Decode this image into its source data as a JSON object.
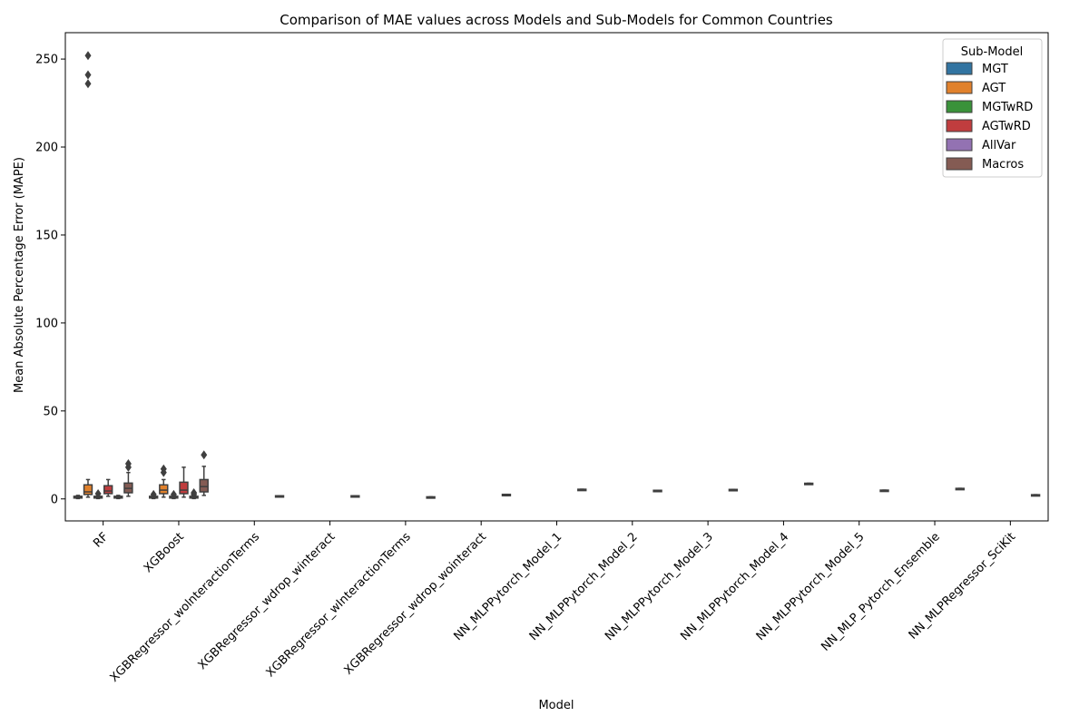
{
  "chart_data": {
    "type": "boxplot",
    "title": "Comparison of MAE values across Models and Sub-Models for Common Countries",
    "xlabel": "Model",
    "ylabel": "Mean Absolute Percentage Error (MAPE)",
    "ylim": [
      -12.5,
      265
    ],
    "yticks": [
      0,
      50,
      100,
      150,
      200,
      250
    ],
    "legend": {
      "title": "Sub-Model",
      "placement": "top-right",
      "entries": [
        "MGT",
        "AGT",
        "MGTwRD",
        "AGTwRD",
        "AllVar",
        "Macros"
      ]
    },
    "colors": {
      "MGT": "#3274a1",
      "AGT": "#e1812c",
      "MGTwRD": "#3a923a",
      "AGTwRD": "#c03d3e",
      "AllVar": "#9372b2",
      "Macros": "#845b53",
      "line": "#3f3f3f"
    },
    "categories": [
      "RF",
      "XGBoost",
      "XGBRegressor_wolnteractionTerms",
      "XGBRegressor_wdrop_winteract",
      "XGBRegressor_wInteractionTerms",
      "XGBRegressor_wdrop_wointeract",
      "NN_MLPPytorch_Model_1",
      "NN_MLPPytorch_Model_2",
      "NN_MLPPytorch_Model_3",
      "NN_MLPPytorch_Model_4",
      "NN_MLPPytorch_Model_5",
      "NN_MLP_Pytorch_Ensemble",
      "NN_MLPRegressor_SciKit"
    ],
    "boxes": [
      {
        "category": 0,
        "sub": "MGT",
        "q1": 0.5,
        "median": 1.0,
        "q3": 1.5,
        "whislo": 0.2,
        "whishi": 2.0,
        "fliers": []
      },
      {
        "category": 0,
        "sub": "AGT",
        "q1": 2.5,
        "median": 4.0,
        "q3": 8.0,
        "whislo": 1.0,
        "whishi": 11.0,
        "fliers": [
          236,
          241,
          252
        ]
      },
      {
        "category": 0,
        "sub": "MGTwRD",
        "q1": 0.5,
        "median": 1.0,
        "q3": 1.5,
        "whislo": 0.2,
        "whishi": 2.0,
        "fliers": [
          3.0
        ]
      },
      {
        "category": 0,
        "sub": "AGTwRD",
        "q1": 3.0,
        "median": 4.5,
        "q3": 7.5,
        "whislo": 1.5,
        "whishi": 11.0,
        "fliers": []
      },
      {
        "category": 0,
        "sub": "AllVar",
        "q1": 0.5,
        "median": 1.0,
        "q3": 1.5,
        "whislo": 0.2,
        "whishi": 2.0,
        "fliers": []
      },
      {
        "category": 0,
        "sub": "Macros",
        "q1": 3.5,
        "median": 6.0,
        "q3": 9.0,
        "whislo": 1.5,
        "whishi": 15.0,
        "fliers": [
          18,
          20
        ]
      },
      {
        "category": 1,
        "sub": "MGT",
        "q1": 0.5,
        "median": 1.0,
        "q3": 1.5,
        "whislo": 0.2,
        "whishi": 2.0,
        "fliers": [
          2.5
        ]
      },
      {
        "category": 1,
        "sub": "AGT",
        "q1": 3.0,
        "median": 5.0,
        "q3": 8.0,
        "whislo": 1.0,
        "whishi": 11.0,
        "fliers": [
          15,
          17
        ]
      },
      {
        "category": 1,
        "sub": "MGTwRD",
        "q1": 0.5,
        "median": 1.0,
        "q3": 1.5,
        "whislo": 0.2,
        "whishi": 2.0,
        "fliers": [
          2.5
        ]
      },
      {
        "category": 1,
        "sub": "AGTwRD",
        "q1": 3.0,
        "median": 5.0,
        "q3": 9.5,
        "whislo": 1.0,
        "whishi": 18.0,
        "fliers": []
      },
      {
        "category": 1,
        "sub": "AllVar",
        "q1": 0.5,
        "median": 1.0,
        "q3": 1.5,
        "whislo": 0.2,
        "whishi": 2.0,
        "fliers": [
          2.5,
          3.5
        ]
      },
      {
        "category": 1,
        "sub": "Macros",
        "q1": 4.0,
        "median": 7.0,
        "q3": 11.0,
        "whislo": 2.0,
        "whishi": 18.5,
        "fliers": [
          25
        ]
      },
      {
        "category": 2,
        "sub": "Macros",
        "q1": 1.2,
        "median": 1.5,
        "q3": 1.8,
        "whislo": 1.2,
        "whishi": 1.8,
        "fliers": []
      },
      {
        "category": 3,
        "sub": "Macros",
        "q1": 1.2,
        "median": 1.5,
        "q3": 1.8,
        "whislo": 1.2,
        "whishi": 1.8,
        "fliers": []
      },
      {
        "category": 4,
        "sub": "Macros",
        "q1": 0.7,
        "median": 1.0,
        "q3": 1.2,
        "whislo": 0.7,
        "whishi": 1.2,
        "fliers": []
      },
      {
        "category": 5,
        "sub": "Macros",
        "q1": 1.8,
        "median": 2.2,
        "q3": 2.6,
        "whislo": 1.8,
        "whishi": 2.6,
        "fliers": []
      },
      {
        "category": 6,
        "sub": "Macros",
        "q1": 5.1,
        "median": 5.3,
        "q3": 5.5,
        "whislo": 5.1,
        "whishi": 5.5,
        "fliers": []
      },
      {
        "category": 7,
        "sub": "Macros",
        "q1": 4.5,
        "median": 4.7,
        "q3": 4.9,
        "whislo": 4.5,
        "whishi": 4.9,
        "fliers": []
      },
      {
        "category": 8,
        "sub": "Macros",
        "q1": 5.0,
        "median": 5.2,
        "q3": 5.4,
        "whislo": 5.0,
        "whishi": 5.4,
        "fliers": []
      },
      {
        "category": 9,
        "sub": "Macros",
        "q1": 8.5,
        "median": 8.7,
        "q3": 8.9,
        "whislo": 8.5,
        "whishi": 8.9,
        "fliers": []
      },
      {
        "category": 10,
        "sub": "Macros",
        "q1": 4.6,
        "median": 4.8,
        "q3": 5.0,
        "whislo": 4.6,
        "whishi": 5.0,
        "fliers": []
      },
      {
        "category": 11,
        "sub": "Macros",
        "q1": 5.6,
        "median": 5.8,
        "q3": 6.0,
        "whislo": 5.6,
        "whishi": 6.0,
        "fliers": []
      },
      {
        "category": 12,
        "sub": "Macros",
        "q1": 2.0,
        "median": 2.2,
        "q3": 2.4,
        "whislo": 2.0,
        "whishi": 2.4,
        "fliers": []
      }
    ],
    "grid": false
  }
}
